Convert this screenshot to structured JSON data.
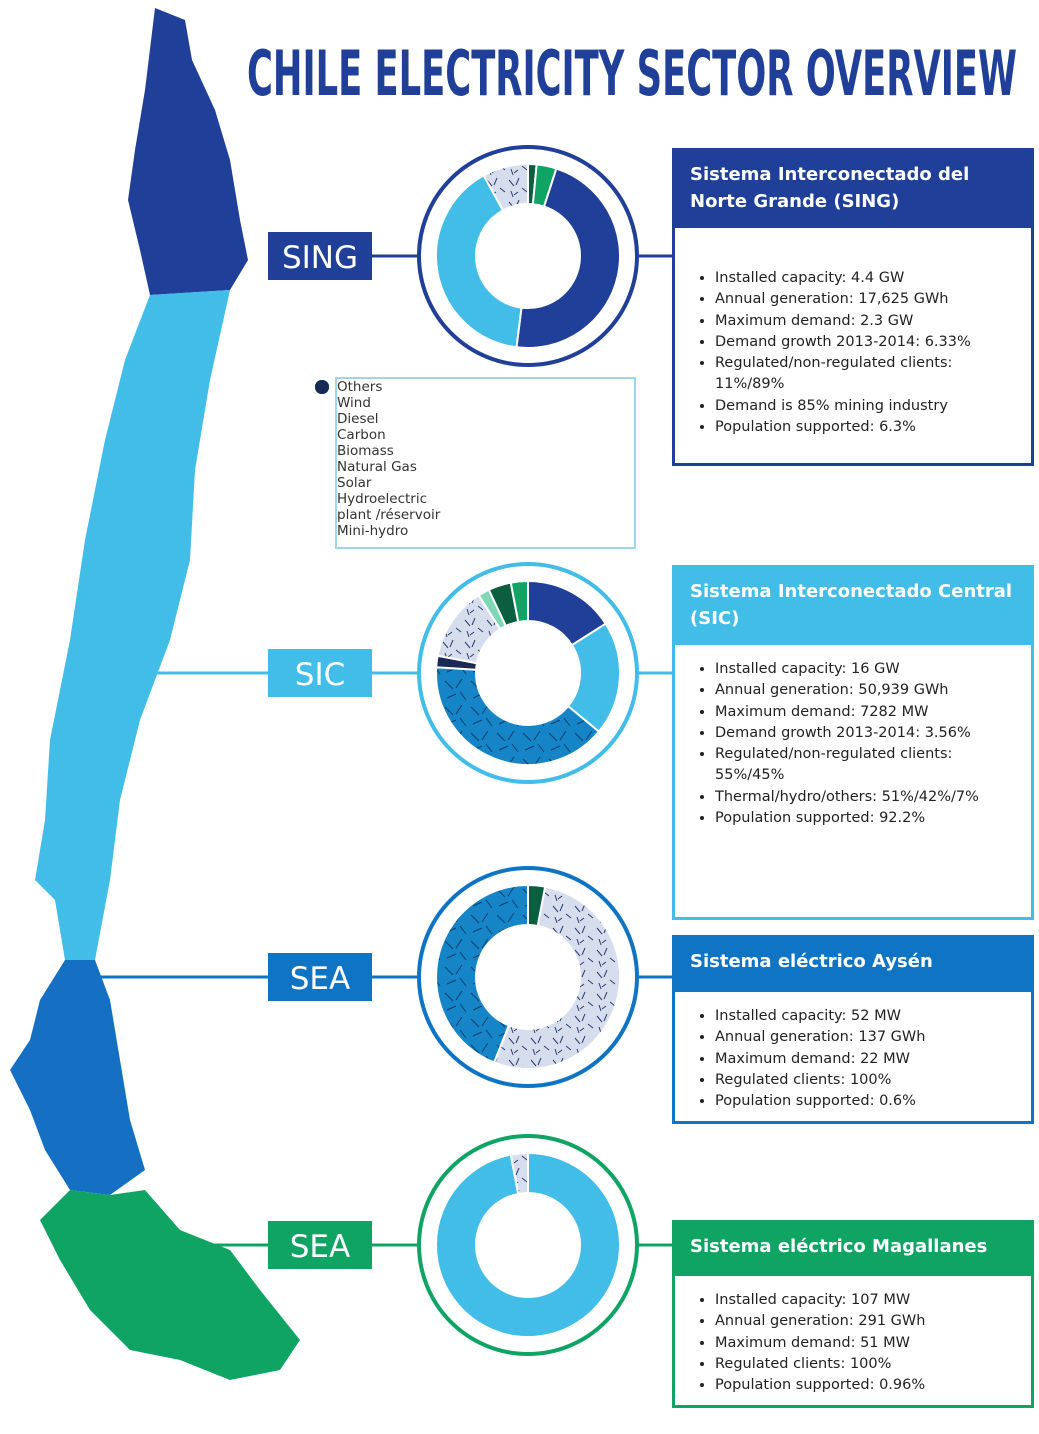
{
  "title": "CHILE ELECTRICITY SECTOR OVERVIEW",
  "legend": [
    {
      "name": "Others",
      "color": "#d1d3d4"
    },
    {
      "name": "Wind",
      "color": "#0b5e3f"
    },
    {
      "name": "Diesel",
      "color": "#cfd8ea"
    },
    {
      "name": "Carbon",
      "color": "#1f3f99"
    },
    {
      "name": "Biomass",
      "color": "#7ed8b8"
    },
    {
      "name": "Natural Gas",
      "color": "#41bde8"
    },
    {
      "name": "Solar",
      "color": "#0fa463"
    },
    {
      "name": "Hydroelectric plant /réservoir",
      "color": "#0f7fc0"
    },
    {
      "name": "Mini-hydro",
      "color": "#1a2a55"
    }
  ],
  "systems": [
    {
      "label": "SING",
      "color": "#1f3f99",
      "heading": "Sistema Interconectado del Norte Grande (SING)",
      "bullets": [
        "Installed capacity: 4.4 GW",
        "Annual generation: 17,625 GWh",
        "Maximum demand: 2.3 GW",
        "Demand growth 2013-2014: 6.33%",
        "Regulated/non-regulated clients: 11%/89%",
        "Demand is 85% mining industry",
        "Population supported: 6.3%"
      ],
      "mix": [
        {
          "source": "Wind",
          "value": 1.5
        },
        {
          "source": "Solar",
          "value": 3.5
        },
        {
          "source": "Carbon",
          "value": 47
        },
        {
          "source": "Natural Gas",
          "value": 40
        },
        {
          "source": "Diesel",
          "value": 8
        }
      ]
    },
    {
      "label": "SIC",
      "color": "#41bde8",
      "heading": "Sistema Interconectado Central (SIC)",
      "bullets": [
        "Installed capacity: 16 GW",
        "Annual generation: 50,939 GWh",
        "Maximum demand: 7282 MW",
        "Demand growth 2013-2014: 3.56%",
        "Regulated/non-regulated clients: 55%/45%",
        "Thermal/hydro/others: 51%/42%/7%",
        "Population supported: 92.2%"
      ],
      "mix": [
        {
          "source": "Carbon",
          "value": 16
        },
        {
          "source": "Natural Gas",
          "value": 20
        },
        {
          "source": "Hydroelectric plant /réservoir",
          "value": 40
        },
        {
          "source": "Mini-hydro",
          "value": 2
        },
        {
          "source": "Diesel",
          "value": 13
        },
        {
          "source": "Biomass",
          "value": 2
        },
        {
          "source": "Wind",
          "value": 4
        },
        {
          "source": "Solar",
          "value": 3
        }
      ]
    },
    {
      "label": "SEA",
      "color": "#0f74c4",
      "heading": "Sistema eléctrico Aysén",
      "bullets": [
        "Installed capacity: 52 MW",
        "Annual generation: 137 GWh",
        "Maximum demand: 22 MW",
        "Regulated clients: 100%",
        "Population supported: 0.6%"
      ],
      "mix": [
        {
          "source": "Wind",
          "value": 3
        },
        {
          "source": "Diesel",
          "value": 53
        },
        {
          "source": "Hydroelectric plant /réservoir",
          "value": 44
        }
      ]
    },
    {
      "label": "SEA",
      "color": "#0fa463",
      "heading": "Sistema eléctrico Magallanes",
      "bullets": [
        "Installed capacity: 107 MW",
        "Annual generation: 291 GWh",
        "Maximum demand: 51 MW",
        "Regulated clients: 100%",
        "Population supported: 0.96%"
      ],
      "mix": [
        {
          "source": "Natural Gas",
          "value": 97
        },
        {
          "source": "Diesel",
          "value": 3
        }
      ]
    }
  ]
}
